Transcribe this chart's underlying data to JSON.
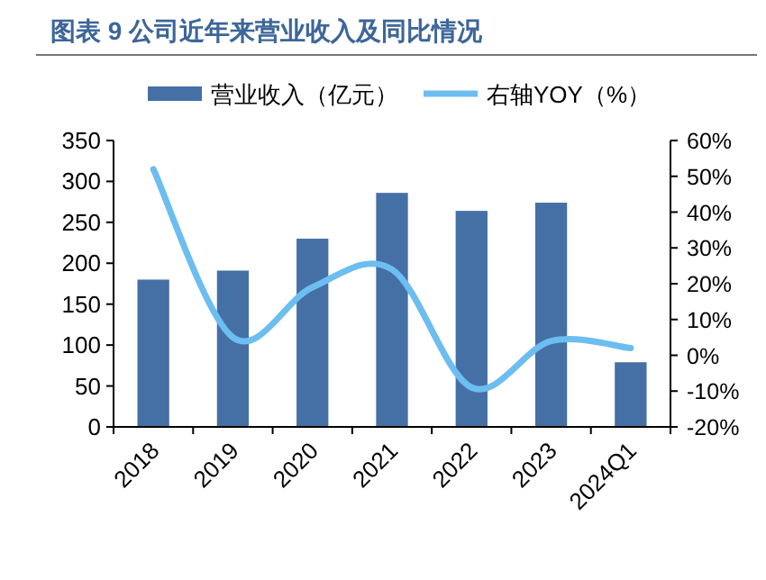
{
  "chart_data": {
    "type": "bar",
    "title": "图表 9 公司近年来营业收入及同比情况",
    "categories": [
      "2018",
      "2019",
      "2020",
      "2021",
      "2022",
      "2023",
      "2024Q1"
    ],
    "series": [
      {
        "name": "营业收入（亿元）",
        "color": "#4570a6",
        "values": [
          180,
          191,
          230,
          286,
          264,
          274,
          79
        ]
      },
      {
        "name": "右轴YOY（%）",
        "type": "line",
        "axis": "y2",
        "color": "#6cbdf0",
        "values": [
          52,
          5,
          19,
          24,
          -9,
          4,
          2
        ]
      }
    ],
    "ylim": [
      0,
      350
    ],
    "yticks": [
      0,
      50,
      100,
      150,
      200,
      250,
      300,
      350
    ],
    "y2lim": [
      -20,
      60
    ],
    "y2ticks": [
      {
        "value": -20,
        "label": "-20%"
      },
      {
        "value": -10,
        "label": "-10%"
      },
      {
        "value": 0,
        "label": "0%"
      },
      {
        "value": 10,
        "label": "10%"
      },
      {
        "value": 20,
        "label": "20%"
      },
      {
        "value": 30,
        "label": "30%"
      },
      {
        "value": 40,
        "label": "40%"
      },
      {
        "value": 50,
        "label": "50%"
      },
      {
        "value": 60,
        "label": "60%"
      }
    ],
    "legend": "top",
    "grid": false
  }
}
